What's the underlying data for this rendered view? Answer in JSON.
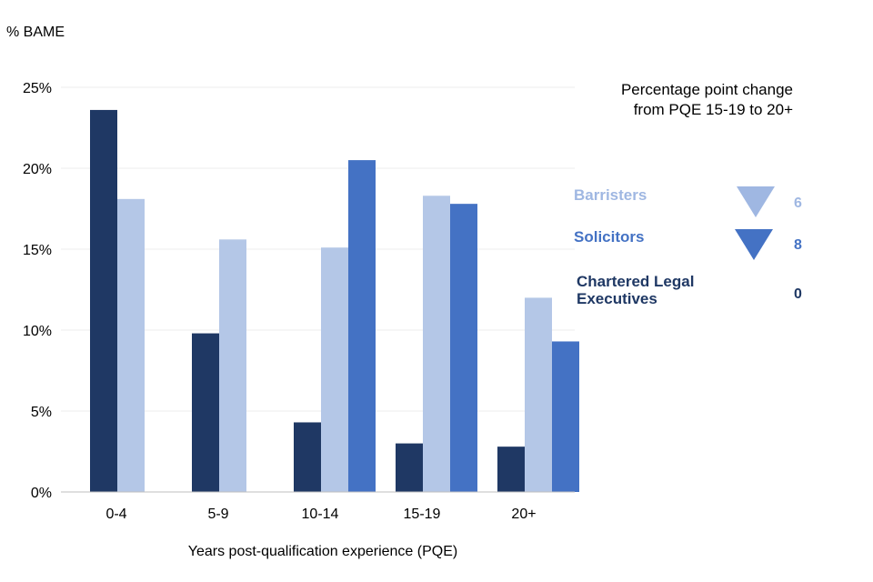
{
  "chart_data": {
    "type": "bar",
    "ylabel": "% BAME",
    "xlabel": "Years post-qualification experience (PQE)",
    "categories": [
      "0-4",
      "5-9",
      "10-14",
      "15-19",
      "20+"
    ],
    "yticks": [
      "0%",
      "5%",
      "10%",
      "15%",
      "20%",
      "25%"
    ],
    "ylim": [
      0,
      25
    ],
    "grid": true,
    "series": [
      {
        "name": "Chartered Legal Executives",
        "color": "#1f3864",
        "values": [
          23.6,
          9.8,
          4.3,
          3.0,
          2.8
        ]
      },
      {
        "name": "Barristers",
        "color": "#b4c7e7",
        "values": [
          18.1,
          15.6,
          15.1,
          18.3,
          12.0
        ]
      },
      {
        "name": "Solicitors",
        "color": "#4472c4",
        "values": [
          null,
          null,
          20.5,
          17.8,
          9.3
        ]
      }
    ]
  },
  "legend": {
    "title": "Percentage point change from PQE 15-19 to 20+",
    "items": [
      {
        "label": "Barristers",
        "change": "6",
        "color": "#9fb7e2",
        "direction": "down"
      },
      {
        "label": "Solicitors",
        "change": "8",
        "color": "#4472c4",
        "direction": "down"
      },
      {
        "label": "Chartered Legal Executives",
        "change": "0",
        "color": "#1f3864",
        "direction": "none"
      }
    ]
  }
}
